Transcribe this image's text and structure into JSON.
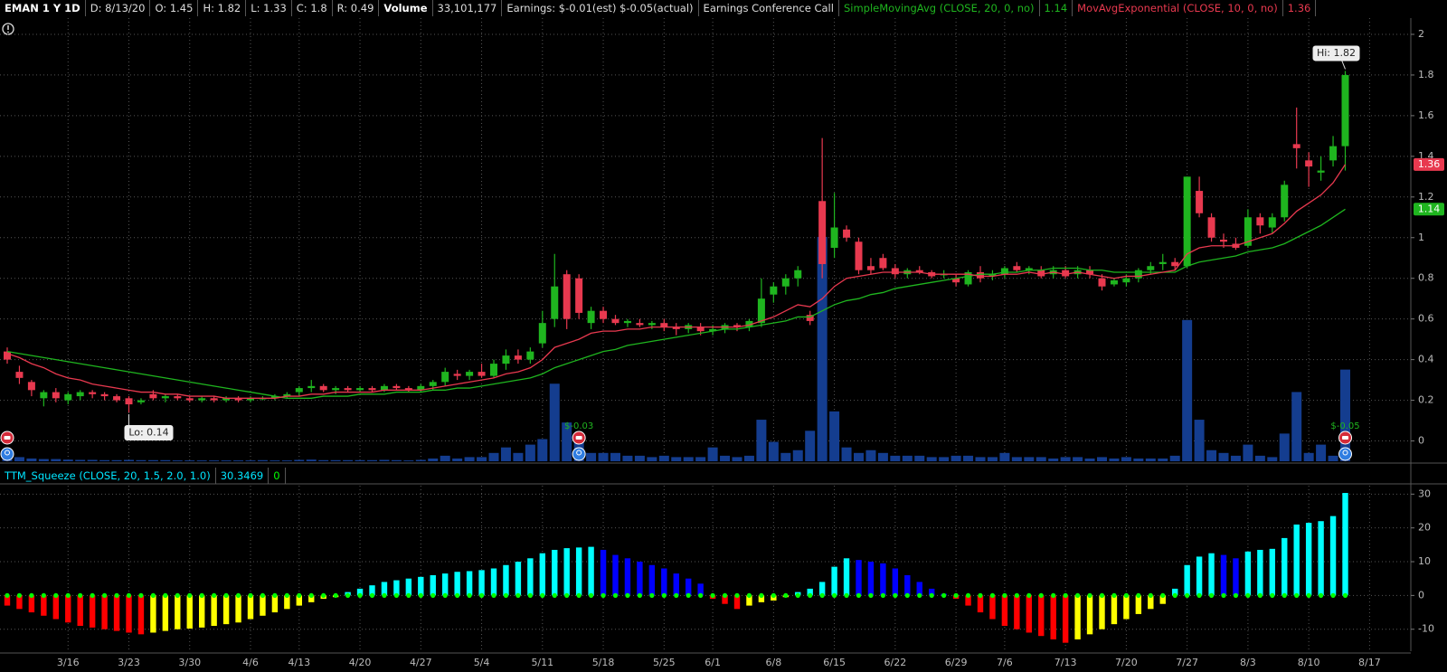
{
  "header": {
    "symbol": "EMAN 1 Y 1D",
    "date": "D: 8/13/20",
    "open": "O: 1.45",
    "high": "H: 1.82",
    "low": "L: 1.33",
    "close": "C: 1.8",
    "range": "R: 0.49",
    "volume": "33,101,177",
    "earnings": "Earnings: $-0.01(est) $-0.05(actual)",
    "conference": "Earnings Conference Call"
  },
  "chart_data": [
    {
      "type": "candlestick",
      "x": [
        "3/9",
        "3/10",
        "3/11",
        "3/12",
        "3/13",
        "3/16",
        "3/17",
        "3/18",
        "3/19",
        "3/20",
        "3/23",
        "3/24",
        "3/25",
        "3/26",
        "3/27",
        "3/30",
        "3/31",
        "4/1",
        "4/2",
        "4/3",
        "4/6",
        "4/7",
        "4/8",
        "4/9",
        "4/13",
        "4/14",
        "4/15",
        "4/16",
        "4/17",
        "4/20",
        "4/21",
        "4/22",
        "4/23",
        "4/24",
        "4/27",
        "4/28",
        "4/29",
        "4/30",
        "5/1",
        "5/4",
        "5/5",
        "5/6",
        "5/7",
        "5/8",
        "5/11",
        "5/12",
        "5/13",
        "5/14",
        "5/15",
        "5/18",
        "5/19",
        "5/20",
        "5/21",
        "5/22",
        "5/26",
        "5/27",
        "5/28",
        "5/29",
        "6/1",
        "6/2",
        "6/3",
        "6/4",
        "6/5",
        "6/8",
        "6/9",
        "6/10",
        "6/11",
        "6/12",
        "6/15",
        "6/16",
        "6/17",
        "6/18",
        "6/19",
        "6/22",
        "6/23",
        "6/24",
        "6/25",
        "6/26",
        "6/29",
        "6/30",
        "7/1",
        "7/2",
        "7/6",
        "7/7",
        "7/8",
        "7/9",
        "7/10",
        "7/13",
        "7/14",
        "7/15",
        "7/16",
        "7/17",
        "7/20",
        "7/21",
        "7/22",
        "7/23",
        "7/24",
        "7/27",
        "7/28",
        "7/29",
        "7/30",
        "7/31",
        "8/3",
        "8/4",
        "8/5",
        "8/6",
        "8/7",
        "8/10",
        "8/11",
        "8/12",
        "8/13"
      ],
      "open": [
        0.44,
        0.34,
        0.29,
        0.21,
        0.24,
        0.2,
        0.22,
        0.24,
        0.23,
        0.22,
        0.21,
        0.19,
        0.23,
        0.21,
        0.22,
        0.21,
        0.2,
        0.21,
        0.2,
        0.21,
        0.2,
        0.21,
        0.21,
        0.22,
        0.24,
        0.26,
        0.27,
        0.25,
        0.26,
        0.25,
        0.26,
        0.25,
        0.27,
        0.26,
        0.25,
        0.27,
        0.29,
        0.33,
        0.32,
        0.34,
        0.32,
        0.38,
        0.42,
        0.4,
        0.48,
        0.6,
        0.82,
        0.8,
        0.58,
        0.64,
        0.6,
        0.58,
        0.58,
        0.57,
        0.58,
        0.56,
        0.55,
        0.56,
        0.54,
        0.55,
        0.57,
        0.56,
        0.58,
        0.72,
        0.76,
        0.8,
        0.62,
        1.18,
        0.95,
        1.04,
        0.98,
        0.86,
        0.9,
        0.85,
        0.82,
        0.84,
        0.83,
        0.82,
        0.8,
        0.77,
        0.83,
        0.81,
        0.82,
        0.86,
        0.84,
        0.84,
        0.82,
        0.84,
        0.82,
        0.84,
        0.8,
        0.77,
        0.78,
        0.8,
        0.84,
        0.87,
        0.88,
        0.86,
        1.23,
        1.1,
        0.99,
        0.97,
        0.96,
        1.1,
        1.05,
        1.1,
        1.46,
        1.38,
        1.32,
        1.38,
        1.45
      ],
      "high": [
        0.46,
        0.37,
        0.3,
        0.25,
        0.26,
        0.24,
        0.25,
        0.25,
        0.24,
        0.23,
        0.22,
        0.21,
        0.25,
        0.23,
        0.23,
        0.22,
        0.22,
        0.22,
        0.22,
        0.22,
        0.22,
        0.22,
        0.23,
        0.24,
        0.27,
        0.3,
        0.28,
        0.27,
        0.27,
        0.27,
        0.27,
        0.28,
        0.28,
        0.27,
        0.28,
        0.3,
        0.36,
        0.35,
        0.35,
        0.38,
        0.4,
        0.45,
        0.45,
        0.46,
        0.64,
        0.92,
        0.84,
        0.82,
        0.66,
        0.66,
        0.62,
        0.6,
        0.6,
        0.59,
        0.6,
        0.58,
        0.58,
        0.58,
        0.57,
        0.58,
        0.58,
        0.6,
        0.8,
        0.78,
        0.82,
        0.86,
        0.64,
        1.49,
        1.22,
        1.06,
        1.0,
        0.9,
        0.92,
        0.87,
        0.85,
        0.86,
        0.84,
        0.84,
        0.82,
        0.84,
        0.86,
        0.84,
        0.86,
        0.88,
        0.86,
        0.86,
        0.86,
        0.86,
        0.86,
        0.86,
        0.82,
        0.8,
        0.82,
        0.85,
        0.88,
        0.92,
        0.9,
        1.3,
        1.3,
        1.12,
        1.02,
        1.0,
        1.14,
        1.12,
        1.12,
        1.28,
        1.64,
        1.42,
        1.4,
        1.5,
        1.82
      ],
      "low": [
        0.38,
        0.28,
        0.22,
        0.17,
        0.19,
        0.18,
        0.2,
        0.21,
        0.2,
        0.19,
        0.14,
        0.18,
        0.2,
        0.19,
        0.2,
        0.19,
        0.19,
        0.19,
        0.19,
        0.19,
        0.19,
        0.2,
        0.2,
        0.21,
        0.22,
        0.24,
        0.24,
        0.23,
        0.24,
        0.24,
        0.24,
        0.24,
        0.25,
        0.24,
        0.24,
        0.25,
        0.27,
        0.3,
        0.3,
        0.31,
        0.31,
        0.35,
        0.38,
        0.38,
        0.46,
        0.56,
        0.55,
        0.6,
        0.55,
        0.58,
        0.57,
        0.56,
        0.56,
        0.55,
        0.54,
        0.52,
        0.53,
        0.52,
        0.52,
        0.53,
        0.54,
        0.54,
        0.56,
        0.68,
        0.72,
        0.76,
        0.57,
        0.8,
        0.9,
        0.98,
        0.82,
        0.82,
        0.84,
        0.8,
        0.8,
        0.82,
        0.8,
        0.8,
        0.76,
        0.76,
        0.78,
        0.79,
        0.8,
        0.83,
        0.82,
        0.8,
        0.8,
        0.8,
        0.8,
        0.8,
        0.74,
        0.76,
        0.76,
        0.78,
        0.82,
        0.84,
        0.84,
        0.85,
        1.1,
        0.98,
        0.95,
        0.94,
        0.95,
        1.02,
        1.02,
        1.08,
        1.34,
        1.25,
        1.28,
        1.35,
        1.33
      ],
      "close": [
        0.4,
        0.31,
        0.25,
        0.24,
        0.21,
        0.23,
        0.24,
        0.23,
        0.22,
        0.2,
        0.18,
        0.2,
        0.21,
        0.22,
        0.21,
        0.2,
        0.21,
        0.2,
        0.21,
        0.2,
        0.21,
        0.21,
        0.22,
        0.23,
        0.26,
        0.27,
        0.25,
        0.26,
        0.25,
        0.26,
        0.25,
        0.27,
        0.26,
        0.25,
        0.27,
        0.29,
        0.34,
        0.32,
        0.34,
        0.32,
        0.38,
        0.42,
        0.4,
        0.44,
        0.58,
        0.76,
        0.6,
        0.63,
        0.64,
        0.6,
        0.58,
        0.59,
        0.57,
        0.58,
        0.56,
        0.55,
        0.57,
        0.54,
        0.55,
        0.57,
        0.56,
        0.59,
        0.7,
        0.76,
        0.8,
        0.84,
        0.59,
        0.87,
        1.05,
        1.0,
        0.84,
        0.84,
        0.85,
        0.82,
        0.84,
        0.83,
        0.81,
        0.82,
        0.78,
        0.83,
        0.8,
        0.82,
        0.85,
        0.84,
        0.85,
        0.81,
        0.84,
        0.81,
        0.84,
        0.82,
        0.76,
        0.79,
        0.8,
        0.84,
        0.86,
        0.88,
        0.86,
        1.3,
        1.12,
        1.0,
        0.98,
        0.95,
        1.1,
        1.06,
        1.1,
        1.26,
        1.44,
        1.35,
        1.33,
        1.45,
        1.8
      ],
      "up_color": "#1fb51f",
      "down_color": "#e8394f",
      "volume": {
        "name": "Volume",
        "color": "#143d8f",
        "ylim": [
          0,
          160
        ],
        "values": [
          2,
          1.5,
          1,
          0.8,
          0.8,
          0.6,
          0.5,
          0.5,
          0.4,
          0.4,
          0.5,
          0.4,
          0.4,
          0.4,
          0.3,
          0.3,
          0.3,
          0.3,
          0.3,
          0.3,
          0.3,
          0.4,
          0.3,
          0.3,
          0.5,
          0.6,
          0.4,
          0.4,
          0.4,
          0.4,
          0.4,
          0.5,
          0.4,
          0.3,
          0.5,
          1,
          2,
          1,
          1.5,
          1.5,
          3,
          5,
          3,
          6,
          8,
          28,
          14,
          8,
          3,
          3,
          3,
          2,
          2,
          1.5,
          2,
          1.5,
          1.5,
          1.5,
          5,
          2,
          1.5,
          2,
          15,
          7,
          3,
          4,
          11,
          81,
          18,
          5,
          3,
          4,
          3,
          2,
          2,
          2,
          1.5,
          1.5,
          2,
          2,
          1.5,
          1.5,
          3,
          1.5,
          1.5,
          1.5,
          1,
          1.5,
          1.5,
          1,
          1.5,
          1,
          1.5,
          1,
          1,
          1,
          2,
          51,
          15,
          4,
          3,
          2,
          6,
          2,
          1.5,
          10,
          25,
          3,
          6,
          2,
          33.101177
        ]
      },
      "series": [
        {
          "name": "SimpleMovingAvg (CLOSE, 20, 0, no)",
          "color": "#1fb51f",
          "values": [
            0.44,
            0.43,
            0.42,
            0.41,
            0.4,
            0.39,
            0.38,
            0.37,
            0.36,
            0.35,
            0.34,
            0.33,
            0.32,
            0.31,
            0.3,
            0.29,
            0.28,
            0.27,
            0.26,
            0.25,
            0.24,
            0.23,
            0.22,
            0.21,
            0.21,
            0.21,
            0.22,
            0.22,
            0.22,
            0.23,
            0.23,
            0.23,
            0.24,
            0.24,
            0.24,
            0.25,
            0.25,
            0.26,
            0.26,
            0.27,
            0.28,
            0.29,
            0.3,
            0.31,
            0.33,
            0.36,
            0.38,
            0.4,
            0.42,
            0.44,
            0.45,
            0.47,
            0.48,
            0.49,
            0.5,
            0.51,
            0.52,
            0.53,
            0.54,
            0.55,
            0.55,
            0.56,
            0.57,
            0.58,
            0.59,
            0.61,
            0.61,
            0.64,
            0.67,
            0.69,
            0.7,
            0.72,
            0.73,
            0.75,
            0.76,
            0.77,
            0.78,
            0.79,
            0.8,
            0.81,
            0.82,
            0.82,
            0.83,
            0.83,
            0.84,
            0.84,
            0.85,
            0.85,
            0.85,
            0.84,
            0.84,
            0.83,
            0.83,
            0.83,
            0.83,
            0.83,
            0.83,
            0.86,
            0.88,
            0.89,
            0.9,
            0.91,
            0.93,
            0.94,
            0.95,
            0.97,
            1.0,
            1.03,
            1.06,
            1.1,
            1.14
          ]
        },
        {
          "name": "MovAvgExponential (CLOSE, 10, 0, no)",
          "color": "#e8394f",
          "values": [
            0.43,
            0.41,
            0.38,
            0.36,
            0.33,
            0.31,
            0.3,
            0.28,
            0.27,
            0.26,
            0.25,
            0.24,
            0.24,
            0.23,
            0.23,
            0.22,
            0.22,
            0.22,
            0.21,
            0.21,
            0.21,
            0.21,
            0.21,
            0.22,
            0.22,
            0.23,
            0.23,
            0.24,
            0.24,
            0.24,
            0.24,
            0.25,
            0.25,
            0.25,
            0.25,
            0.26,
            0.27,
            0.28,
            0.29,
            0.3,
            0.31,
            0.33,
            0.34,
            0.36,
            0.4,
            0.46,
            0.48,
            0.5,
            0.53,
            0.54,
            0.54,
            0.55,
            0.55,
            0.56,
            0.56,
            0.56,
            0.56,
            0.56,
            0.56,
            0.56,
            0.56,
            0.57,
            0.59,
            0.61,
            0.64,
            0.67,
            0.66,
            0.7,
            0.76,
            0.8,
            0.81,
            0.82,
            0.83,
            0.83,
            0.83,
            0.83,
            0.82,
            0.82,
            0.82,
            0.82,
            0.81,
            0.81,
            0.82,
            0.82,
            0.83,
            0.82,
            0.83,
            0.82,
            0.83,
            0.82,
            0.81,
            0.8,
            0.81,
            0.81,
            0.82,
            0.83,
            0.84,
            0.92,
            0.95,
            0.96,
            0.96,
            0.96,
            0.98,
            1.0,
            1.02,
            1.07,
            1.13,
            1.17,
            1.21,
            1.27,
            1.36
          ]
        }
      ],
      "ylim": [
        -0.1,
        2.08
      ],
      "yticks": [
        0,
        0.2,
        0.4,
        0.6,
        0.8,
        1,
        1.2,
        1.4,
        1.6,
        1.8,
        2
      ],
      "xticks": [
        "3/16",
        "3/23",
        "3/30",
        "4/6",
        "4/13",
        "4/20",
        "4/27",
        "5/4",
        "5/11",
        "5/18",
        "5/25",
        "6/1",
        "6/8",
        "6/15",
        "6/22",
        "6/29",
        "7/6",
        "7/13",
        "7/20",
        "7/27",
        "8/3",
        "8/10",
        "8/17"
      ],
      "grid": true,
      "annotations": [
        {
          "text": "Hi: 1.82",
          "x": "8/13"
        },
        {
          "text": "Lo: 0.14",
          "x": "3/23"
        }
      ],
      "earnings": [
        {
          "text": "$-0.03",
          "x": "5/14"
        },
        {
          "text": "$-0.05",
          "x": "8/13"
        }
      ]
    },
    {
      "type": "bar",
      "title": "TTM_Squeeze (CLOSE, 20, 1.5, 2.0, 1.0)",
      "title_color": "#00e5ff",
      "alert_value": 0,
      "values": [
        -3,
        -4,
        -5,
        -6,
        -7,
        -8,
        -9,
        -9.5,
        -10,
        -10.5,
        -11,
        -11.5,
        -11,
        -10.5,
        -10,
        -9.8,
        -9.5,
        -9,
        -8.5,
        -8,
        -7,
        -6,
        -5,
        -4,
        -3,
        -2,
        -1,
        -0.5,
        1,
        2,
        3,
        4,
        4.5,
        5,
        5.5,
        6,
        6.5,
        7,
        7.2,
        7.5,
        8,
        9,
        10,
        11,
        12.5,
        13.5,
        14,
        14.2,
        14.4,
        13.5,
        12,
        11,
        10,
        9,
        8,
        6.5,
        5,
        3.5,
        -1,
        -2.5,
        -4,
        -3,
        -2,
        -1.5,
        -0.5,
        1,
        2,
        4,
        8.5,
        11,
        10.5,
        10,
        9.5,
        8,
        6,
        4,
        2,
        0.5,
        -1,
        -3,
        -5,
        -7,
        -9,
        -10,
        -11,
        -12,
        -13,
        -14,
        -13,
        -11.5,
        -10,
        -8.5,
        -7,
        -5.5,
        -4,
        -2.5,
        2,
        9,
        11.5,
        12.5,
        12,
        11,
        13,
        13.5,
        13.8,
        17,
        21,
        21.5,
        22,
        23.5,
        30.3469
      ],
      "colors": {
        "pos_up": "#00ffff",
        "pos_down": "#0000ff",
        "neg_down": "#ff0000",
        "neg_up": "#ffff00"
      },
      "dot_color": "#00ff00",
      "ylim": [
        -16.5,
        32.5
      ],
      "yticks": [
        -10,
        0,
        10,
        20,
        30
      ],
      "grid": true
    }
  ]
}
